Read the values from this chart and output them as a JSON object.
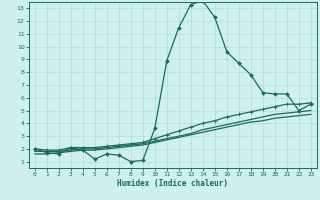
{
  "xlabel": "Humidex (Indice chaleur)",
  "bg_color": "#cff0ee",
  "grid_color": "#b8e0dc",
  "line_color": "#1a6b5e",
  "xlim": [
    -0.5,
    23.5
  ],
  "ylim": [
    0.5,
    13.5
  ],
  "xticks": [
    0,
    1,
    2,
    3,
    4,
    5,
    6,
    7,
    8,
    9,
    10,
    11,
    12,
    13,
    14,
    15,
    16,
    17,
    18,
    19,
    20,
    21,
    22,
    23
  ],
  "yticks": [
    1,
    2,
    3,
    4,
    5,
    6,
    7,
    8,
    9,
    10,
    11,
    12,
    13
  ],
  "line1_x": [
    0,
    1,
    2,
    3,
    4,
    5,
    6,
    7,
    8,
    9,
    10,
    11,
    12,
    13,
    14,
    15,
    16,
    17,
    18,
    19,
    20,
    21,
    22,
    23
  ],
  "line1_y": [
    2.0,
    1.7,
    1.6,
    2.1,
    1.9,
    1.2,
    1.6,
    1.5,
    1.0,
    1.1,
    3.6,
    8.9,
    11.5,
    13.3,
    13.6,
    12.3,
    9.6,
    8.7,
    7.8,
    6.4,
    6.3,
    6.3,
    5.0,
    5.5
  ],
  "line2_x": [
    0,
    1,
    2,
    3,
    4,
    5,
    6,
    7,
    8,
    9,
    10,
    11,
    12,
    13,
    14,
    15,
    16,
    17,
    18,
    19,
    20,
    21,
    22,
    23
  ],
  "line2_y": [
    2.0,
    1.9,
    1.9,
    2.1,
    2.1,
    2.1,
    2.2,
    2.3,
    2.4,
    2.5,
    2.8,
    3.1,
    3.4,
    3.7,
    4.0,
    4.2,
    4.5,
    4.7,
    4.9,
    5.1,
    5.3,
    5.5,
    5.5,
    5.6
  ],
  "line3_x": [
    0,
    1,
    2,
    3,
    4,
    5,
    6,
    7,
    8,
    9,
    10,
    11,
    12,
    13,
    14,
    15,
    16,
    17,
    18,
    19,
    20,
    21,
    22,
    23
  ],
  "line3_y": [
    1.8,
    1.8,
    1.8,
    1.9,
    2.0,
    2.0,
    2.1,
    2.2,
    2.3,
    2.4,
    2.6,
    2.8,
    3.0,
    3.2,
    3.5,
    3.7,
    3.9,
    4.1,
    4.3,
    4.5,
    4.7,
    4.8,
    4.9,
    5.0
  ],
  "line4_x": [
    0,
    1,
    2,
    3,
    4,
    5,
    6,
    7,
    8,
    9,
    10,
    11,
    12,
    13,
    14,
    15,
    16,
    17,
    18,
    19,
    20,
    21,
    22,
    23
  ],
  "line4_y": [
    1.6,
    1.6,
    1.7,
    1.8,
    1.9,
    1.9,
    2.0,
    2.1,
    2.2,
    2.3,
    2.5,
    2.7,
    2.9,
    3.1,
    3.3,
    3.5,
    3.7,
    3.9,
    4.1,
    4.2,
    4.4,
    4.5,
    4.6,
    4.7
  ]
}
